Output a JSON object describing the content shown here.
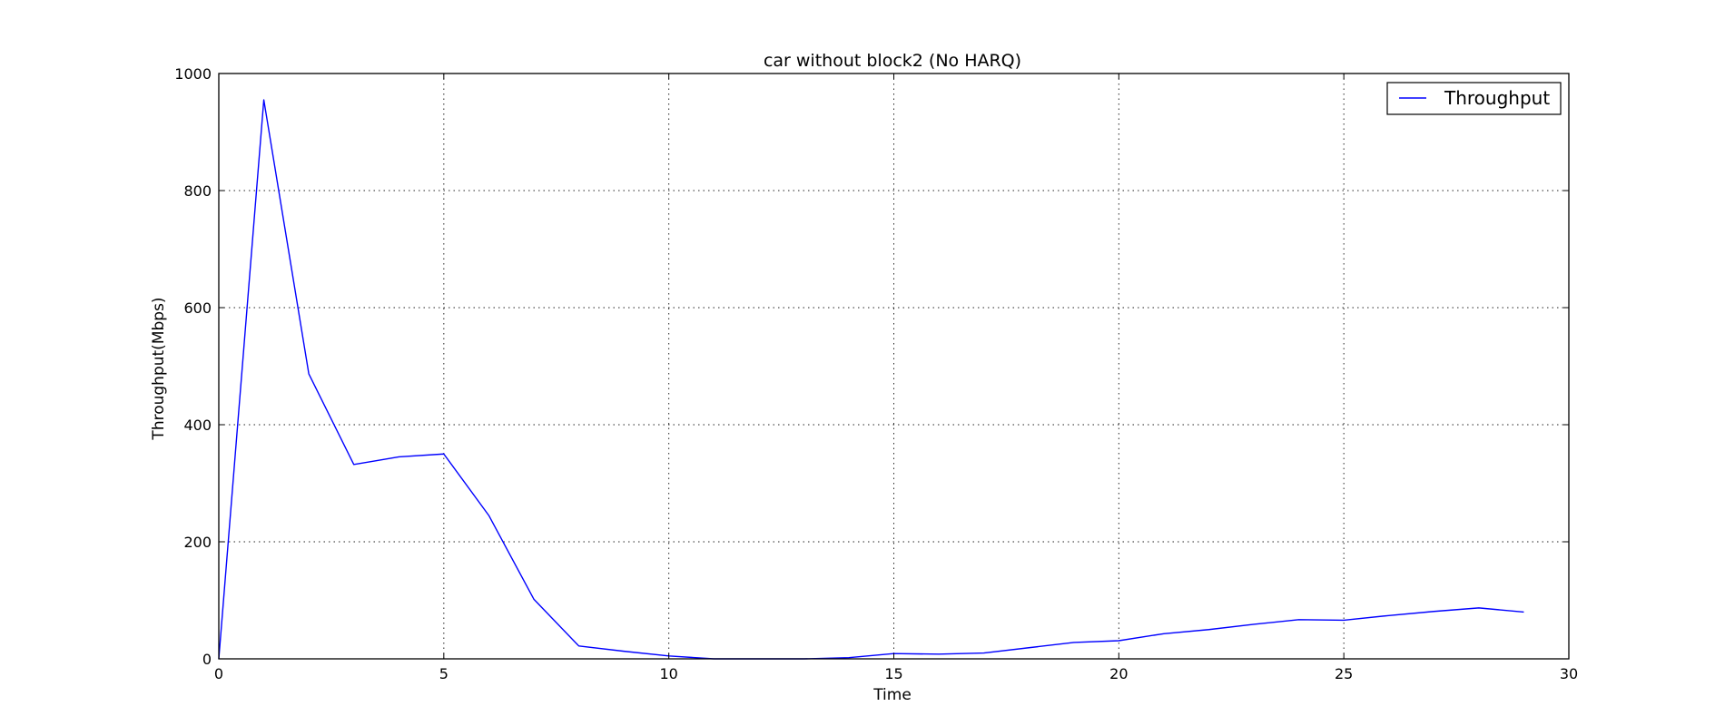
{
  "chart_data": {
    "type": "line",
    "title": "car without block2 (No HARQ)",
    "xlabel": "Time",
    "ylabel": "Throughput(Mbps)",
    "xlim": [
      0,
      30
    ],
    "ylim": [
      0,
      1000
    ],
    "xticks": [
      0,
      5,
      10,
      15,
      20,
      25,
      30
    ],
    "xtick_labels": [
      "0",
      "5",
      "10",
      "15",
      "20",
      "25",
      "30"
    ],
    "yticks": [
      0,
      200,
      400,
      600,
      800,
      1000
    ],
    "ytick_labels": [
      "0",
      "200",
      "400",
      "600",
      "800",
      "1000"
    ],
    "grid": true,
    "legend_position": "top-right",
    "series": [
      {
        "name": "Throughput",
        "color": "#0000ff",
        "x": [
          0,
          1,
          2,
          3,
          4,
          5,
          6,
          7,
          8,
          9,
          10,
          11,
          12,
          13,
          14,
          15,
          16,
          17,
          18,
          19,
          20,
          21,
          22,
          23,
          24,
          25,
          26,
          27,
          28,
          29
        ],
        "y": [
          0,
          955,
          487,
          332,
          345,
          350,
          245,
          102,
          22,
          13,
          5,
          0,
          0,
          0,
          2,
          9,
          8,
          10,
          19,
          28,
          31,
          43,
          50,
          59,
          67,
          66,
          74,
          81,
          87,
          80
        ]
      }
    ]
  }
}
